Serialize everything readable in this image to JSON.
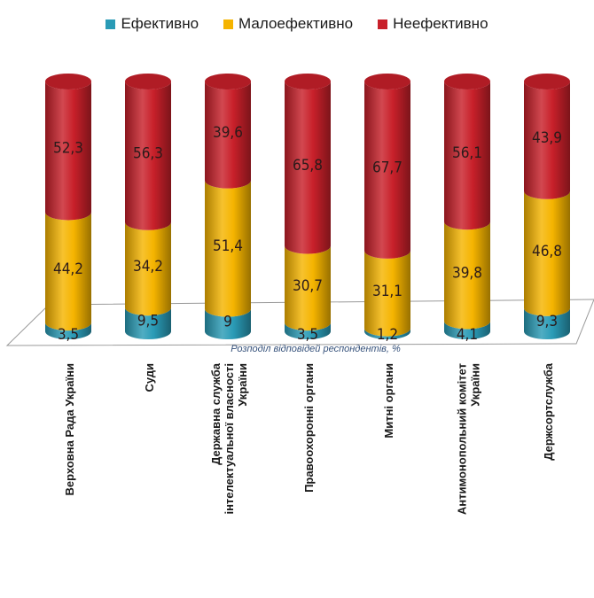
{
  "colors": {
    "effective": "#2a9bb6",
    "low_effective": "#f5b400",
    "ineffective": "#c8202a"
  },
  "legend": [
    {
      "label": "Ефективно",
      "color": "#2a9bb6"
    },
    {
      "label": "Малоефективно",
      "color": "#f5b400"
    },
    {
      "label": "Неефективно",
      "color": "#c8202a"
    }
  ],
  "chart_data": {
    "type": "bar",
    "stacked": true,
    "xlabel": "Розподіл відповідей респондентів, %",
    "categories": [
      "Верховна Рада України",
      "Суди",
      "Державна служба інтелектуальної власності України",
      "Правоохоронні органи",
      "Митні органи",
      "Антимонопольний комітет України",
      "Держсортслужба"
    ],
    "category_lines": [
      [
        "Верховна Рада України"
      ],
      [
        "Суди"
      ],
      [
        "Державна служба",
        "інтелектуальної власності",
        "України"
      ],
      [
        "Правоохоронні органи"
      ],
      [
        "Митні органи"
      ],
      [
        "Антимонопольний комітет",
        "України"
      ],
      [
        "Держсортслужба"
      ]
    ],
    "series": [
      {
        "name": "Ефективно",
        "values": [
          3.5,
          9.5,
          9,
          3.5,
          1.2,
          4.1,
          9.3
        ],
        "labels": [
          "3,5",
          "9,5",
          "9",
          "3,5",
          "1,2",
          "4,1",
          "9,3"
        ]
      },
      {
        "name": "Малоефективно",
        "values": [
          44.2,
          34.2,
          51.4,
          30.7,
          31.1,
          39.8,
          46.8
        ],
        "labels": [
          "44,2",
          "34,2",
          "51,4",
          "30,7",
          "31,1",
          "39,8",
          "46,8"
        ]
      },
      {
        "name": "Неефективно",
        "values": [
          52.3,
          56.3,
          39.6,
          65.8,
          67.7,
          56.1,
          43.9
        ],
        "labels": [
          "52,3",
          "56,3",
          "39,6",
          "65,8",
          "67,7",
          "56,1",
          "43,9"
        ]
      }
    ],
    "ylim": [
      0,
      100
    ],
    "legend_position": "top"
  }
}
